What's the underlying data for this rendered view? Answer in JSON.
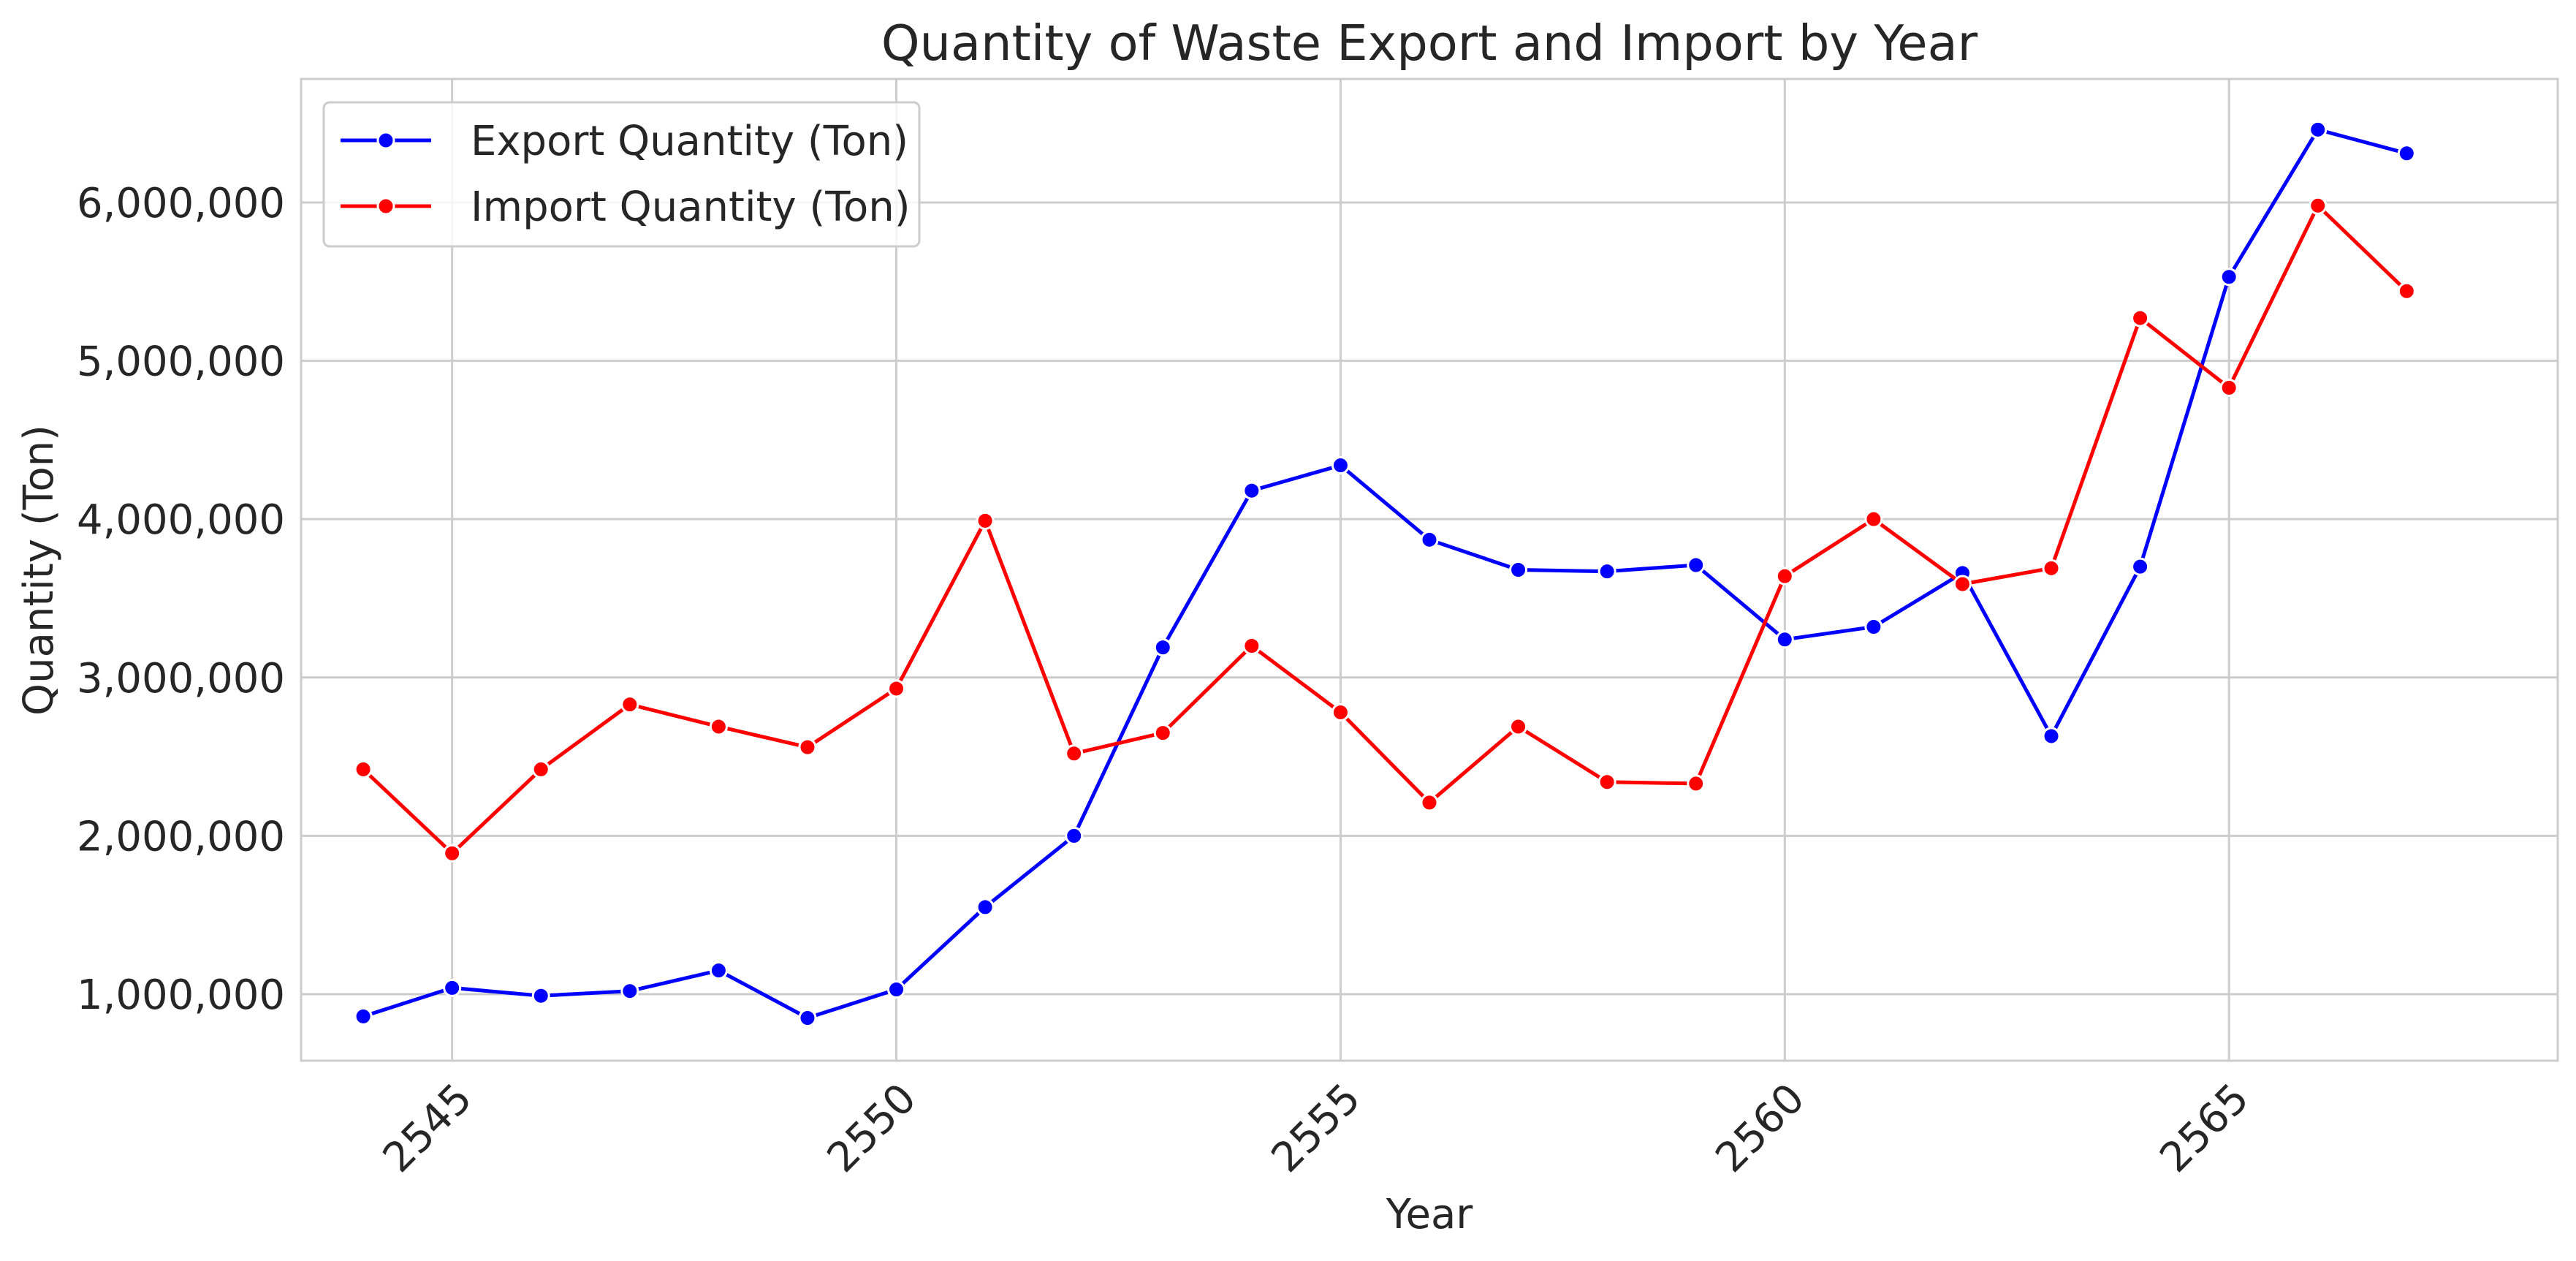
{
  "chart_data": {
    "type": "line",
    "title": "Quantity of Waste Export and Import by Year",
    "xlabel": "Year",
    "ylabel": "Quantity (Ton)",
    "x": [
      2544,
      2545,
      2546,
      2547,
      2548,
      2549,
      2550,
      2551,
      2552,
      2553,
      2554,
      2555,
      2556,
      2557,
      2558,
      2559,
      2560,
      2561,
      2562,
      2563,
      2564,
      2565,
      2566,
      2567
    ],
    "xlim": [
      2543.3,
      2568.7
    ],
    "ylim": [
      580000,
      6780000
    ],
    "x_ticks": [
      2545,
      2550,
      2555,
      2560,
      2565
    ],
    "x_tick_labels": [
      "2545",
      "2550",
      "2555",
      "2560",
      "2565"
    ],
    "y_ticks": [
      1000000,
      2000000,
      3000000,
      4000000,
      5000000,
      6000000
    ],
    "y_tick_labels": [
      "1,000,000",
      "2,000,000",
      "3,000,000",
      "4,000,000",
      "5,000,000",
      "6,000,000"
    ],
    "grid": true,
    "legend": "top-left",
    "series": [
      {
        "name": "Export Quantity (Ton)",
        "color": "#0000ff",
        "values": [
          860000,
          1040000,
          990000,
          1020000,
          1150000,
          850000,
          1030000,
          1550000,
          2000000,
          3190000,
          4180000,
          4340000,
          3870000,
          3680000,
          3670000,
          3710000,
          3240000,
          3320000,
          3660000,
          2630000,
          3700000,
          5530000,
          6460000,
          6310000
        ]
      },
      {
        "name": "Import Quantity (Ton)",
        "color": "#ff0000",
        "values": [
          2420000,
          1890000,
          2420000,
          2830000,
          2690000,
          2560000,
          2930000,
          3990000,
          2520000,
          2650000,
          3200000,
          2780000,
          2210000,
          2690000,
          2340000,
          2330000,
          3640000,
          4000000,
          3590000,
          3690000,
          5270000,
          4830000,
          5980000,
          5440000
        ]
      }
    ]
  }
}
